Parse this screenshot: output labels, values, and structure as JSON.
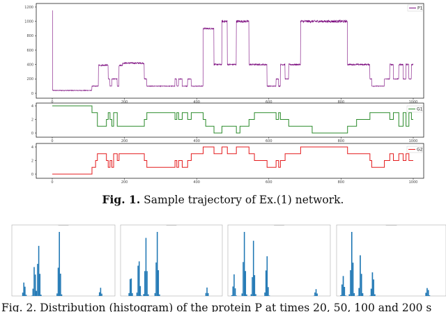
{
  "chart_data": [
    {
      "type": "line",
      "series": [
        {
          "name": "P1",
          "color": "#7b0a7e"
        }
      ],
      "xlim": [
        0,
        1000
      ],
      "ylim": [
        0,
        1200
      ],
      "xticks": [
        0,
        200,
        400,
        600,
        800,
        1000
      ],
      "yticks": [
        0,
        200,
        400,
        600,
        800,
        1000,
        1200
      ],
      "xtick_labels": [
        "0",
        "200",
        "400",
        "600",
        "800",
        "1000"
      ],
      "ytick_labels": [
        "0",
        "200",
        "400",
        "600",
        "800",
        "1000",
        "1200"
      ],
      "legend": "top-right",
      "segments": [
        [
          0,
          2,
          1150
        ],
        [
          2,
          110,
          40
        ],
        [
          110,
          128,
          100
        ],
        [
          128,
          155,
          390
        ],
        [
          155,
          160,
          200
        ],
        [
          160,
          165,
          100
        ],
        [
          165,
          180,
          200
        ],
        [
          180,
          185,
          100
        ],
        [
          185,
          195,
          390
        ],
        [
          195,
          255,
          420
        ],
        [
          255,
          262,
          200
        ],
        [
          262,
          340,
          100
        ],
        [
          340,
          345,
          200
        ],
        [
          345,
          350,
          100
        ],
        [
          350,
          360,
          200
        ],
        [
          360,
          375,
          100
        ],
        [
          375,
          385,
          200
        ],
        [
          385,
          418,
          100
        ],
        [
          418,
          440,
          900
        ],
        [
          440,
          448,
          900
        ],
        [
          448,
          450,
          400
        ],
        [
          450,
          470,
          400
        ],
        [
          470,
          485,
          1000
        ],
        [
          485,
          495,
          400
        ],
        [
          495,
          510,
          400
        ],
        [
          510,
          545,
          1000
        ],
        [
          545,
          560,
          400
        ],
        [
          560,
          595,
          400
        ],
        [
          595,
          620,
          100
        ],
        [
          620,
          627,
          200
        ],
        [
          627,
          632,
          100
        ],
        [
          632,
          645,
          400
        ],
        [
          645,
          655,
          200
        ],
        [
          655,
          688,
          400
        ],
        [
          688,
          818,
          1000
        ],
        [
          818,
          843,
          400
        ],
        [
          843,
          880,
          400
        ],
        [
          880,
          885,
          200
        ],
        [
          885,
          920,
          100
        ],
        [
          920,
          935,
          200
        ],
        [
          935,
          945,
          400
        ],
        [
          945,
          960,
          200
        ],
        [
          960,
          972,
          400
        ],
        [
          972,
          980,
          200
        ],
        [
          980,
          988,
          400
        ],
        [
          988,
          995,
          200
        ],
        [
          995,
          1000,
          400
        ]
      ]
    },
    {
      "type": "line",
      "series": [
        {
          "name": "G1",
          "color": "#2a8a2a"
        }
      ],
      "xlim": [
        0,
        1000
      ],
      "ylim": [
        0,
        4
      ],
      "xticks": [
        0,
        200,
        400,
        600,
        800,
        1000
      ],
      "yticks": [
        0,
        2,
        4
      ],
      "xtick_labels": [
        "0",
        "200",
        "400",
        "600",
        "800",
        "1000"
      ],
      "ytick_labels": [
        "0",
        "2",
        "4"
      ],
      "legend": "top-right",
      "steps": [
        [
          0,
          110,
          4
        ],
        [
          110,
          125,
          3
        ],
        [
          125,
          150,
          1
        ],
        [
          150,
          155,
          2
        ],
        [
          155,
          160,
          3
        ],
        [
          160,
          165,
          2
        ],
        [
          165,
          170,
          1
        ],
        [
          170,
          180,
          3
        ],
        [
          180,
          185,
          1
        ],
        [
          185,
          255,
          1
        ],
        [
          255,
          262,
          2
        ],
        [
          262,
          340,
          3
        ],
        [
          340,
          345,
          2
        ],
        [
          345,
          350,
          3
        ],
        [
          350,
          360,
          2
        ],
        [
          360,
          375,
          3
        ],
        [
          375,
          385,
          2
        ],
        [
          385,
          418,
          3
        ],
        [
          418,
          425,
          2
        ],
        [
          425,
          448,
          1
        ],
        [
          448,
          470,
          0
        ],
        [
          470,
          485,
          1
        ],
        [
          485,
          510,
          1
        ],
        [
          510,
          520,
          0
        ],
        [
          520,
          545,
          1
        ],
        [
          545,
          560,
          2
        ],
        [
          560,
          595,
          3
        ],
        [
          595,
          620,
          3
        ],
        [
          620,
          627,
          2
        ],
        [
          627,
          632,
          3
        ],
        [
          632,
          645,
          2
        ],
        [
          645,
          655,
          2
        ],
        [
          655,
          688,
          1
        ],
        [
          688,
          720,
          1
        ],
        [
          720,
          818,
          0
        ],
        [
          818,
          843,
          1
        ],
        [
          843,
          880,
          2
        ],
        [
          880,
          885,
          3
        ],
        [
          885,
          920,
          3
        ],
        [
          920,
          935,
          3
        ],
        [
          935,
          945,
          2
        ],
        [
          945,
          960,
          3
        ],
        [
          960,
          972,
          1
        ],
        [
          972,
          980,
          3
        ],
        [
          980,
          988,
          1
        ],
        [
          988,
          995,
          3
        ],
        [
          995,
          1000,
          2
        ]
      ]
    },
    {
      "type": "line",
      "series": [
        {
          "name": "G2",
          "color": "#e41a1c"
        }
      ],
      "xlim": [
        0,
        1000
      ],
      "ylim": [
        0,
        4
      ],
      "xticks": [
        0,
        200,
        400,
        600,
        800,
        1000
      ],
      "yticks": [
        0,
        2,
        4
      ],
      "xtick_labels": [
        "0",
        "200",
        "400",
        "600",
        "800",
        "1000"
      ],
      "ytick_labels": [
        "0",
        "2",
        "4"
      ],
      "legend": "top-right",
      "steps": [
        [
          0,
          110,
          0
        ],
        [
          110,
          120,
          1
        ],
        [
          120,
          125,
          2
        ],
        [
          125,
          150,
          3
        ],
        [
          150,
          155,
          2
        ],
        [
          155,
          160,
          1
        ],
        [
          160,
          165,
          2
        ],
        [
          165,
          170,
          1
        ],
        [
          170,
          180,
          3
        ],
        [
          180,
          185,
          2
        ],
        [
          185,
          255,
          3
        ],
        [
          255,
          262,
          2
        ],
        [
          262,
          340,
          1
        ],
        [
          340,
          345,
          2
        ],
        [
          345,
          350,
          1
        ],
        [
          350,
          360,
          2
        ],
        [
          360,
          375,
          1
        ],
        [
          375,
          385,
          2
        ],
        [
          385,
          418,
          3
        ],
        [
          418,
          448,
          4
        ],
        [
          448,
          470,
          3
        ],
        [
          470,
          485,
          4
        ],
        [
          485,
          510,
          3
        ],
        [
          510,
          545,
          4
        ],
        [
          545,
          560,
          3
        ],
        [
          560,
          595,
          2
        ],
        [
          595,
          620,
          1
        ],
        [
          620,
          627,
          2
        ],
        [
          627,
          632,
          1
        ],
        [
          632,
          645,
          2
        ],
        [
          645,
          655,
          3
        ],
        [
          655,
          688,
          3
        ],
        [
          688,
          818,
          4
        ],
        [
          818,
          843,
          3
        ],
        [
          843,
          880,
          3
        ],
        [
          880,
          885,
          2
        ],
        [
          885,
          920,
          1
        ],
        [
          920,
          935,
          2
        ],
        [
          935,
          945,
          3
        ],
        [
          945,
          960,
          2
        ],
        [
          960,
          972,
          3
        ],
        [
          972,
          980,
          2
        ],
        [
          980,
          988,
          3
        ],
        [
          988,
          995,
          2
        ],
        [
          995,
          1000,
          2
        ]
      ]
    },
    {
      "type": "bar",
      "color": "#1f77b4",
      "peaks": [
        [
          0.12,
          0.25
        ],
        [
          0.22,
          0.55
        ],
        [
          0.26,
          0.9
        ],
        [
          0.46,
          1.0
        ],
        [
          0.86,
          0.12
        ]
      ]
    },
    {
      "type": "bar",
      "color": "#1f77b4",
      "peaks": [
        [
          0.1,
          0.3
        ],
        [
          0.18,
          0.65
        ],
        [
          0.25,
          0.85
        ],
        [
          0.36,
          1.0
        ],
        [
          0.85,
          0.12
        ]
      ]
    },
    {
      "type": "bar",
      "color": "#1f77b4",
      "peaks": [
        [
          0.06,
          0.3
        ],
        [
          0.16,
          1.0
        ],
        [
          0.25,
          0.8
        ],
        [
          0.38,
          0.6
        ],
        [
          0.86,
          0.1
        ]
      ]
    },
    {
      "type": "bar",
      "color": "#1f77b4",
      "peaks": [
        [
          0.06,
          0.35
        ],
        [
          0.14,
          1.0
        ],
        [
          0.22,
          0.6
        ],
        [
          0.33,
          0.4
        ],
        [
          0.83,
          0.15
        ]
      ]
    }
  ],
  "captions": {
    "fig1_bold": "Fig. 1.",
    "fig1_text": " Sample trajectory of Ex.(1) network.",
    "fig2": "Fig. 2. Distribution (histogram) of the protein P at times 20, 50, 100 and 200 s"
  }
}
